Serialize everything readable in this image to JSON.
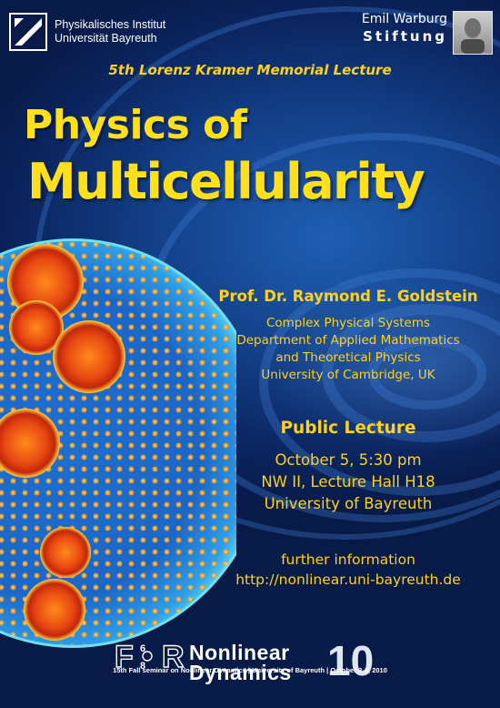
{
  "header": {
    "institute_line1": "Physikalisches Institut",
    "institute_line2": "Universität Bayreuth",
    "foundation_name": "Emil Warburg",
    "foundation_word": "Stiftung"
  },
  "event": {
    "series": "5th Lorenz Kramer Memorial Lecture",
    "title_line1": "Physics of",
    "title_line2": "Multicellularity"
  },
  "speaker": {
    "name": "Prof. Dr. Raymond E. Goldstein",
    "affiliation": [
      "Complex Physical Systems",
      "Department of Applied Mathematics",
      "and Theoretical Physics",
      "University of Cambridge, UK"
    ]
  },
  "lecture": {
    "heading": "Public Lecture",
    "details": [
      "October 5, 5:30 pm",
      "NW II, Lecture Hall H18",
      "University of Bayreuth"
    ]
  },
  "info": {
    "label": "further information",
    "url": "http://nonlinear.uni-bayreuth.de"
  },
  "footer": {
    "logo_letters": "FOR",
    "logo_digits": "608",
    "line1": "Nonlinear",
    "line2": "Dynamics",
    "number": "10",
    "note": "15th Fall seminar on Nonlinear Dynamics | University of Bayreuth | October 3-6, 2010"
  },
  "colors": {
    "accent_yellow": "#ffd21a",
    "background_blue": "#134089"
  }
}
